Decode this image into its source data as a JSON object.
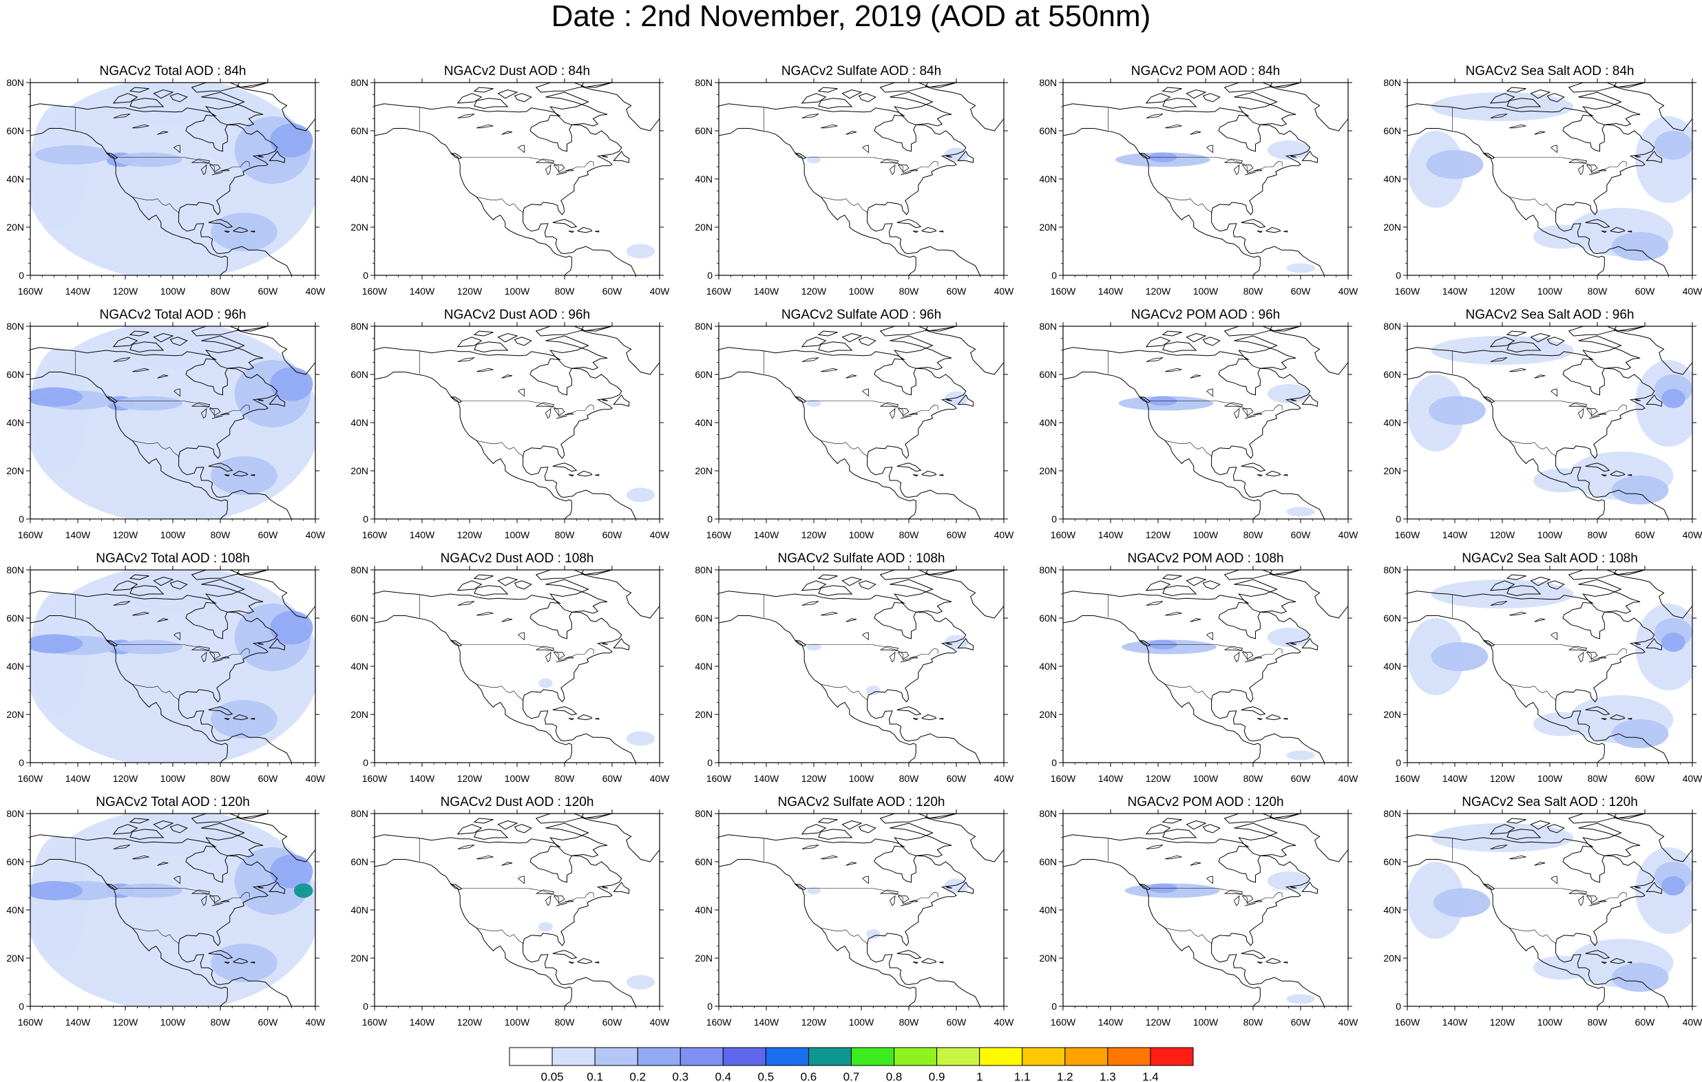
{
  "title": "Date : 2nd November, 2019 (AOD at 550nm)",
  "axes": {
    "lat_ticks": [
      "80N",
      "60N",
      "40N",
      "20N",
      "0"
    ],
    "lon_ticks": [
      "160W",
      "140W",
      "120W",
      "100W",
      "80W",
      "60W",
      "40W"
    ]
  },
  "panels": [
    {
      "title": "NGACv2 Total AOD : 84h",
      "species": "total",
      "hour": 84
    },
    {
      "title": "NGACv2 Dust AOD : 84h",
      "species": "dust",
      "hour": 84
    },
    {
      "title": "NGACv2 Sulfate AOD : 84h",
      "species": "sulfate",
      "hour": 84
    },
    {
      "title": "NGACv2 POM AOD : 84h",
      "species": "pom",
      "hour": 84
    },
    {
      "title": "NGACv2 Sea Salt AOD : 84h",
      "species": "seasalt",
      "hour": 84
    },
    {
      "title": "NGACv2 Total AOD : 96h",
      "species": "total",
      "hour": 96
    },
    {
      "title": "NGACv2 Dust AOD : 96h",
      "species": "dust",
      "hour": 96
    },
    {
      "title": "NGACv2 Sulfate AOD : 96h",
      "species": "sulfate",
      "hour": 96
    },
    {
      "title": "NGACv2 POM AOD : 96h",
      "species": "pom",
      "hour": 96
    },
    {
      "title": "NGACv2 Sea Salt AOD : 96h",
      "species": "seasalt",
      "hour": 96
    },
    {
      "title": "NGACv2 Total AOD : 108h",
      "species": "total",
      "hour": 108
    },
    {
      "title": "NGACv2 Dust AOD : 108h",
      "species": "dust",
      "hour": 108
    },
    {
      "title": "NGACv2 Sulfate AOD : 108h",
      "species": "sulfate",
      "hour": 108
    },
    {
      "title": "NGACv2 POM AOD : 108h",
      "species": "pom",
      "hour": 108
    },
    {
      "title": "NGACv2 Sea Salt AOD : 108h",
      "species": "seasalt",
      "hour": 108
    },
    {
      "title": "NGACv2 Total AOD : 120h",
      "species": "total",
      "hour": 120
    },
    {
      "title": "NGACv2 Dust AOD : 120h",
      "species": "dust",
      "hour": 120
    },
    {
      "title": "NGACv2 Sulfate AOD : 120h",
      "species": "sulfate",
      "hour": 120
    },
    {
      "title": "NGACv2 POM AOD : 120h",
      "species": "pom",
      "hour": 120
    },
    {
      "title": "NGACv2 Sea Salt  AOD : 120h",
      "species": "seasalt",
      "hour": 120
    }
  ],
  "colorbar": {
    "labels": [
      "0.05",
      "0.1",
      "0.2",
      "0.3",
      "0.4",
      "0.5",
      "0.6",
      "0.7",
      "0.8",
      "0.9",
      "1",
      "1.1",
      "1.2",
      "1.3",
      "1.4"
    ],
    "colors": [
      "#ffffff",
      "#d5e0fa",
      "#b4c6f6",
      "#92aaf4",
      "#7f8ff2",
      "#5f67ec",
      "#1a6ff0",
      "#0e9690",
      "#3cec1e",
      "#8ff21e",
      "#c9f542",
      "#fffa00",
      "#ffc800",
      "#ffa200",
      "#ff7600",
      "#ff1e14"
    ]
  },
  "field_colors": {
    "light": "#d5e0fa",
    "mid": "#b4c6f6",
    "strong": "#92aaf4",
    "peak": "#7f8ff2",
    "teal": "#0e9690"
  }
}
